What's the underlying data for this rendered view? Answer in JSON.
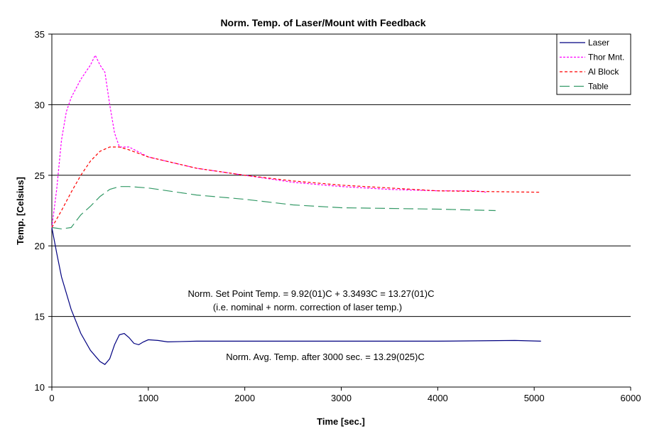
{
  "chart_data": {
    "type": "line",
    "title": "Norm. Temp. of Laser/Mount with Feedback",
    "xlabel": "Time [sec.]",
    "ylabel": "Temp. [Celsius]",
    "xlim": [
      0,
      6000
    ],
    "ylim": [
      10,
      35
    ],
    "xticks": [
      0,
      1000,
      2000,
      3000,
      4000,
      5000,
      6000
    ],
    "yticks": [
      10,
      15,
      20,
      25,
      30,
      35
    ],
    "grid": "horizontal",
    "legend_position": "top-right",
    "series": [
      {
        "name": "Laser",
        "color": "#000080",
        "dash": "",
        "x": [
          0,
          50,
          100,
          200,
          300,
          400,
          500,
          550,
          600,
          650,
          700,
          750,
          800,
          850,
          900,
          950,
          1000,
          1100,
          1200,
          1500,
          2000,
          3000,
          4000,
          4800,
          5070
        ],
        "y": [
          21.3,
          19.5,
          17.8,
          15.5,
          13.8,
          12.6,
          11.8,
          11.6,
          12.0,
          13.0,
          13.7,
          13.8,
          13.5,
          13.1,
          13.0,
          13.2,
          13.35,
          13.3,
          13.2,
          13.25,
          13.25,
          13.25,
          13.25,
          13.3,
          13.25
        ]
      },
      {
        "name": "Thor Mnt.",
        "color": "#FF00FF",
        "dash": "3,2",
        "x": [
          0,
          50,
          100,
          150,
          200,
          300,
          400,
          450,
          500,
          550,
          600,
          650,
          700,
          800,
          1000,
          1500,
          2000,
          2500,
          3000,
          3500,
          4000,
          4400,
          4500
        ],
        "y": [
          21.3,
          24.0,
          27.5,
          29.5,
          30.5,
          31.8,
          32.8,
          33.5,
          32.8,
          32.3,
          30.0,
          28.0,
          27.0,
          27.0,
          26.3,
          25.5,
          25.0,
          24.5,
          24.2,
          24.0,
          23.9,
          23.9,
          23.8
        ]
      },
      {
        "name": "Al Block",
        "color": "#FF0000",
        "dash": "4,3",
        "x": [
          0,
          100,
          200,
          300,
          400,
          500,
          600,
          700,
          800,
          1000,
          1500,
          2000,
          2500,
          3000,
          3500,
          4000,
          4500,
          5070
        ],
        "y": [
          21.3,
          22.5,
          23.8,
          25.0,
          26.0,
          26.7,
          27.0,
          27.0,
          26.8,
          26.3,
          25.5,
          25.0,
          24.6,
          24.3,
          24.1,
          23.9,
          23.85,
          23.8
        ]
      },
      {
        "name": "Table",
        "color": "#339966",
        "dash": "14,6",
        "x": [
          0,
          100,
          200,
          300,
          400,
          500,
          600,
          700,
          800,
          1000,
          1500,
          2000,
          2500,
          3000,
          3500,
          4000,
          4600
        ],
        "y": [
          21.3,
          21.2,
          21.3,
          22.2,
          22.8,
          23.5,
          24.0,
          24.2,
          24.2,
          24.1,
          23.6,
          23.3,
          22.9,
          22.7,
          22.65,
          22.6,
          22.5
        ]
      }
    ],
    "annotations": [
      "Norm. Set Point Temp. = 9.92(01)C +  3.3493C = 13.27(01)C",
      "(i.e. nominal + norm. correction of laser temp.)",
      "Norm. Avg. Temp. after 3000 sec. =  13.29(025)C"
    ]
  }
}
